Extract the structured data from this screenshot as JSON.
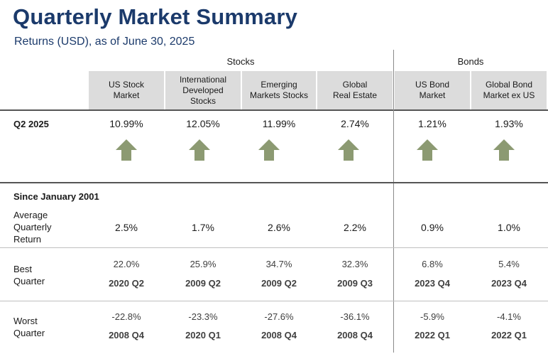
{
  "title": "Quarterly Market Summary",
  "subtitle": "Returns (USD), as of June 30, 2025",
  "groups": {
    "stocks": "Stocks",
    "bonds": "Bonds"
  },
  "columns": [
    {
      "label": "US Stock\nMarket"
    },
    {
      "label": "International\nDeveloped\nStocks"
    },
    {
      "label": "Emerging\nMarkets Stocks"
    },
    {
      "label": "Global\nReal Estate"
    },
    {
      "label": "US Bond\nMarket"
    },
    {
      "label": "Global Bond\nMarket ex US"
    }
  ],
  "q2": {
    "label": "Q2 2025",
    "values": [
      "10.99%",
      "12.05%",
      "11.99%",
      "2.74%",
      "1.21%",
      "1.93%"
    ],
    "direction": [
      "up",
      "up",
      "up",
      "up",
      "up",
      "up"
    ],
    "arrow_color": "#8c9a72"
  },
  "since": {
    "label": "Since January 2001",
    "avg_label": "Average\nQuarterly\nReturn",
    "avg": [
      "2.5%",
      "1.7%",
      "2.6%",
      "2.2%",
      "0.9%",
      "1.0%"
    ],
    "best_label": "Best\nQuarter",
    "best_values": [
      "22.0%",
      "25.9%",
      "34.7%",
      "32.3%",
      "6.8%",
      "5.4%"
    ],
    "best_quarters": [
      "2020 Q2",
      "2009 Q2",
      "2009 Q2",
      "2009 Q3",
      "2023 Q4",
      "2023 Q4"
    ],
    "worst_label": "Worst\nQuarter",
    "worst_values": [
      "-22.8%",
      "-23.3%",
      "-27.6%",
      "-36.1%",
      "-5.9%",
      "-4.1%"
    ],
    "worst_quarters": [
      "2008 Q4",
      "2020 Q1",
      "2008 Q4",
      "2008 Q4",
      "2022 Q1",
      "2022 Q1"
    ]
  },
  "colors": {
    "title": "#1b3a6b",
    "header_bg": "#dcdcdc",
    "arrow": "#8c9a72"
  }
}
